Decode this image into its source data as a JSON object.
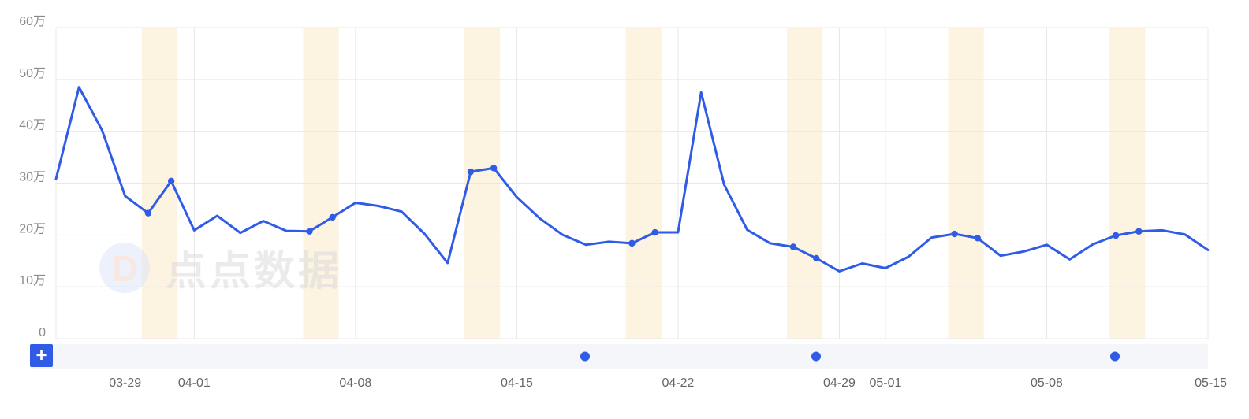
{
  "watermark": {
    "text": "点点数据"
  },
  "colors": {
    "line": "#2f5be7",
    "weekend": "#fdf3e1",
    "grid": "#e8e8e8",
    "scrollbar_bg": "#f4f6f9",
    "plus_button": "#2f5be7"
  },
  "scrollbar": {
    "plus_label": "+"
  },
  "chart_data": {
    "type": "line",
    "title": "",
    "xlabel": "",
    "ylabel": "",
    "ylim": [
      0,
      600000
    ],
    "y_ticks": [
      {
        "value": 0,
        "label": "0"
      },
      {
        "value": 100000,
        "label": "10万"
      },
      {
        "value": 200000,
        "label": "20万"
      },
      {
        "value": 300000,
        "label": "30万"
      },
      {
        "value": 400000,
        "label": "40万"
      },
      {
        "value": 500000,
        "label": "50万"
      },
      {
        "value": 600000,
        "label": "60万"
      }
    ],
    "x_ticks": [
      "03-29",
      "04-01",
      "04-08",
      "04-15",
      "04-22",
      "04-29",
      "05-01",
      "05-08",
      "05-15"
    ],
    "grid": true,
    "weekend_bands": [
      "03-30",
      "04-06",
      "04-13",
      "04-20",
      "04-27",
      "05-04",
      "05-11"
    ],
    "series": [
      {
        "values": [
          {
            "x": "03-26",
            "y": 308000
          },
          {
            "x": "03-27",
            "y": 485000
          },
          {
            "x": "03-28",
            "y": 402000
          },
          {
            "x": "03-29",
            "y": 275000
          },
          {
            "x": "03-30",
            "y": 242000,
            "marker": true
          },
          {
            "x": "03-31",
            "y": 304000,
            "marker": true
          },
          {
            "x": "04-01",
            "y": 209000
          },
          {
            "x": "04-02",
            "y": 237000
          },
          {
            "x": "04-03",
            "y": 204000
          },
          {
            "x": "04-04",
            "y": 227000
          },
          {
            "x": "04-05",
            "y": 208000
          },
          {
            "x": "04-06",
            "y": 207000,
            "marker": true
          },
          {
            "x": "04-07",
            "y": 234000,
            "marker": true
          },
          {
            "x": "04-08",
            "y": 262000
          },
          {
            "x": "04-09",
            "y": 256000
          },
          {
            "x": "04-10",
            "y": 245000
          },
          {
            "x": "04-11",
            "y": 202000
          },
          {
            "x": "04-12",
            "y": 146000
          },
          {
            "x": "04-13",
            "y": 322000,
            "marker": true
          },
          {
            "x": "04-14",
            "y": 329000,
            "marker": true
          },
          {
            "x": "04-15",
            "y": 273000
          },
          {
            "x": "04-16",
            "y": 232000
          },
          {
            "x": "04-17",
            "y": 200000
          },
          {
            "x": "04-18",
            "y": 181000
          },
          {
            "x": "04-19",
            "y": 187000
          },
          {
            "x": "04-20",
            "y": 184000,
            "marker": true
          },
          {
            "x": "04-21",
            "y": 205000,
            "marker": true
          },
          {
            "x": "04-22",
            "y": 205000
          },
          {
            "x": "04-23",
            "y": 475000
          },
          {
            "x": "04-24",
            "y": 297000
          },
          {
            "x": "04-25",
            "y": 210000
          },
          {
            "x": "04-26",
            "y": 184000
          },
          {
            "x": "04-27",
            "y": 177000,
            "marker": true
          },
          {
            "x": "04-28",
            "y": 155000,
            "marker": true
          },
          {
            "x": "04-29",
            "y": 130000
          },
          {
            "x": "04-30",
            "y": 145000
          },
          {
            "x": "05-01",
            "y": 136000
          },
          {
            "x": "05-02",
            "y": 158000
          },
          {
            "x": "05-03",
            "y": 195000
          },
          {
            "x": "05-04",
            "y": 202000,
            "marker": true
          },
          {
            "x": "05-05",
            "y": 194000,
            "marker": true
          },
          {
            "x": "05-06",
            "y": 160000
          },
          {
            "x": "05-07",
            "y": 168000
          },
          {
            "x": "05-08",
            "y": 181000
          },
          {
            "x": "05-09",
            "y": 153000
          },
          {
            "x": "05-10",
            "y": 182000
          },
          {
            "x": "05-11",
            "y": 199000,
            "marker": true
          },
          {
            "x": "05-12",
            "y": 207000,
            "marker": true
          },
          {
            "x": "05-13",
            "y": 209000
          },
          {
            "x": "05-14",
            "y": 201000
          },
          {
            "x": "05-15",
            "y": 171000
          }
        ]
      }
    ]
  }
}
